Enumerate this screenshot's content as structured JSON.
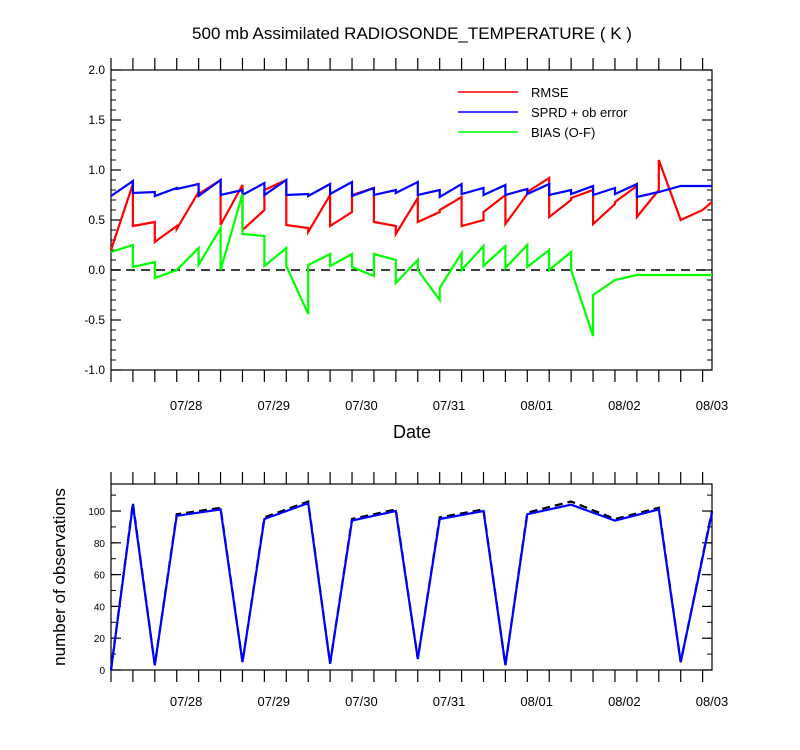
{
  "chart_data": [
    {
      "type": "line",
      "title": "500 mb Assimilated RADIOSONDE_TEMPERATURE ( K )",
      "xlabel": "Date",
      "ylabel": "",
      "xlim": [
        0,
        144
      ],
      "ylim": [
        -1.0,
        2.0
      ],
      "ytick_labels": [
        "2.0",
        "1.5",
        "1.0",
        "0.5",
        "0.0",
        "-0.5",
        "-1.0"
      ],
      "ytick_values": [
        2.0,
        1.5,
        1.0,
        0.5,
        0.0,
        -0.5,
        -1.0
      ],
      "x_tick_labels": [
        "07/28",
        "07/29",
        "07/30",
        "07/31",
        "08/01",
        "08/02",
        "08/03"
      ],
      "x_tick_values": [
        18,
        39,
        60,
        81,
        102,
        123,
        144
      ],
      "zero_line": true,
      "legend_position": "top-right",
      "legend": [
        "RMSE",
        "SPRD + ob error",
        "BIAS (O-F)"
      ],
      "series": [
        {
          "name": "RMSE",
          "color": "#ff0000",
          "x": [
            0,
            5.25,
            5.25,
            10.5,
            10.5,
            15.75,
            15.75,
            21,
            21,
            26.25,
            26.25,
            31.5,
            31.5,
            36.75,
            36.75,
            42,
            42,
            47.25,
            47.25,
            52.5,
            52.5,
            57.75,
            57.75,
            63,
            63,
            68.25,
            68.25,
            73.5,
            73.5,
            78.75,
            78.75,
            84,
            84,
            89.25,
            89.25,
            94.5,
            94.5,
            99.75,
            99.75,
            105,
            105,
            110.25,
            110.25,
            115.5,
            115.5,
            120.75,
            120.75,
            126,
            126,
            131.25,
            131.25,
            136.5,
            136.5,
            141.75,
            141.75,
            144
          ],
          "values": [
            0.2,
            0.86,
            0.44,
            0.48,
            0.28,
            0.44,
            0.41,
            0.78,
            0.76,
            0.9,
            0.45,
            0.85,
            0.4,
            0.6,
            0.8,
            0.9,
            0.45,
            0.42,
            0.38,
            0.75,
            0.44,
            0.58,
            0.75,
            0.82,
            0.48,
            0.44,
            0.36,
            0.72,
            0.48,
            0.58,
            0.6,
            0.73,
            0.44,
            0.5,
            0.58,
            0.75,
            0.46,
            0.76,
            0.78,
            0.92,
            0.53,
            0.7,
            0.72,
            0.8,
            0.46,
            0.66,
            0.68,
            0.84,
            0.53,
            0.8,
            1.1,
            0.5,
            0.5,
            0.6,
            0.6,
            0.68
          ]
        },
        {
          "name": "SPRD + ob error",
          "color": "#0000ff",
          "x": [
            0,
            5.25,
            5.25,
            10.5,
            10.5,
            15.75,
            15.75,
            21,
            21,
            26.25,
            26.25,
            31.5,
            31.5,
            36.75,
            36.75,
            42,
            42,
            47.25,
            47.25,
            52.5,
            52.5,
            57.75,
            57.75,
            63,
            63,
            68.25,
            68.25,
            73.5,
            73.5,
            78.75,
            78.75,
            84,
            84,
            89.25,
            89.25,
            94.5,
            94.5,
            99.75,
            99.75,
            105,
            105,
            110.25,
            110.25,
            115.5,
            115.5,
            120.75,
            120.75,
            126,
            126,
            131.25,
            131.25,
            136.5,
            136.5,
            141.75,
            141.75,
            144
          ],
          "values": [
            0.74,
            0.89,
            0.77,
            0.78,
            0.74,
            0.82,
            0.81,
            0.86,
            0.74,
            0.9,
            0.75,
            0.8,
            0.75,
            0.87,
            0.75,
            0.9,
            0.75,
            0.76,
            0.74,
            0.86,
            0.76,
            0.88,
            0.74,
            0.82,
            0.75,
            0.8,
            0.77,
            0.88,
            0.75,
            0.8,
            0.73,
            0.86,
            0.76,
            0.82,
            0.75,
            0.85,
            0.75,
            0.81,
            0.76,
            0.86,
            0.75,
            0.8,
            0.76,
            0.84,
            0.75,
            0.82,
            0.76,
            0.86,
            0.73,
            0.78,
            0.78,
            0.84,
            0.84,
            0.84,
            0.84,
            0.84
          ]
        },
        {
          "name": "BIAS (O-F)",
          "color": "#00ff00",
          "x": [
            0,
            5.25,
            5.25,
            10.5,
            10.5,
            15.75,
            15.75,
            21,
            21,
            26.25,
            26.25,
            31.5,
            31.5,
            36.75,
            36.75,
            42,
            42,
            47.25,
            47.25,
            52.5,
            52.5,
            57.75,
            57.75,
            63,
            63,
            68.25,
            68.25,
            73.5,
            73.5,
            78.75,
            78.75,
            84,
            84,
            89.25,
            89.25,
            94.5,
            94.5,
            99.75,
            99.75,
            105,
            105,
            110.25,
            110.25,
            115.5,
            115.5,
            120.75,
            120.75,
            126,
            126,
            131.25,
            131.25,
            136.5,
            136.5,
            141.75,
            141.75,
            144
          ],
          "values": [
            0.18,
            0.25,
            0.03,
            0.08,
            -0.08,
            0.0,
            0.0,
            0.22,
            0.05,
            0.42,
            0.0,
            0.76,
            0.36,
            0.34,
            0.04,
            0.22,
            0.04,
            -0.44,
            0.05,
            0.16,
            0.04,
            0.16,
            0.03,
            -0.06,
            0.16,
            0.1,
            -0.13,
            0.1,
            0.0,
            -0.3,
            -0.18,
            0.17,
            0.0,
            0.24,
            0.04,
            0.24,
            0.02,
            0.25,
            0.03,
            0.2,
            0.0,
            0.18,
            0.0,
            -0.66,
            -0.25,
            -0.1,
            -0.1,
            -0.05,
            -0.05,
            -0.05,
            -0.05,
            -0.05,
            -0.05,
            -0.05,
            -0.05,
            -0.05
          ]
        }
      ]
    },
    {
      "type": "line",
      "title": "",
      "xlabel": "",
      "ylabel": "number of observations",
      "xlim": [
        0,
        144
      ],
      "ylim": [
        0,
        117
      ],
      "ytick_labels": [
        "100",
        "80",
        "60",
        "40",
        "20",
        "0"
      ],
      "ytick_values": [
        100,
        80,
        60,
        40,
        20,
        0
      ],
      "x_tick_labels": [
        "07/28",
        "07/29",
        "07/30",
        "07/31",
        "08/01",
        "08/02",
        "08/03"
      ],
      "x_tick_values": [
        18,
        39,
        60,
        81,
        102,
        123,
        144
      ],
      "series": [
        {
          "color": "#000000",
          "dashed": true,
          "x": [
            0,
            5.25,
            10.5,
            15.75,
            26.25,
            31.5,
            36.75,
            47.25,
            52.5,
            57.75,
            68.25,
            73.5,
            78.75,
            89.25,
            94.5,
            99.75,
            110.25,
            120.75,
            131.25,
            136.5,
            144
          ],
          "values": [
            0,
            105,
            3,
            98,
            102,
            5,
            96,
            106,
            4,
            95,
            101,
            7,
            96,
            101,
            3,
            99,
            106,
            95,
            102,
            5,
            100
          ]
        },
        {
          "color": "#0000ff",
          "dashed": false,
          "x": [
            0,
            5.25,
            10.5,
            15.75,
            26.25,
            31.5,
            36.75,
            47.25,
            52.5,
            57.75,
            68.25,
            73.5,
            78.75,
            89.25,
            94.5,
            99.75,
            110.25,
            120.75,
            131.25,
            136.5,
            144
          ],
          "values": [
            0,
            104,
            3,
            97,
            101,
            5,
            95,
            105,
            4,
            94,
            100,
            7,
            95,
            100,
            3,
            98,
            104,
            94,
            101,
            5,
            99
          ]
        }
      ]
    }
  ]
}
